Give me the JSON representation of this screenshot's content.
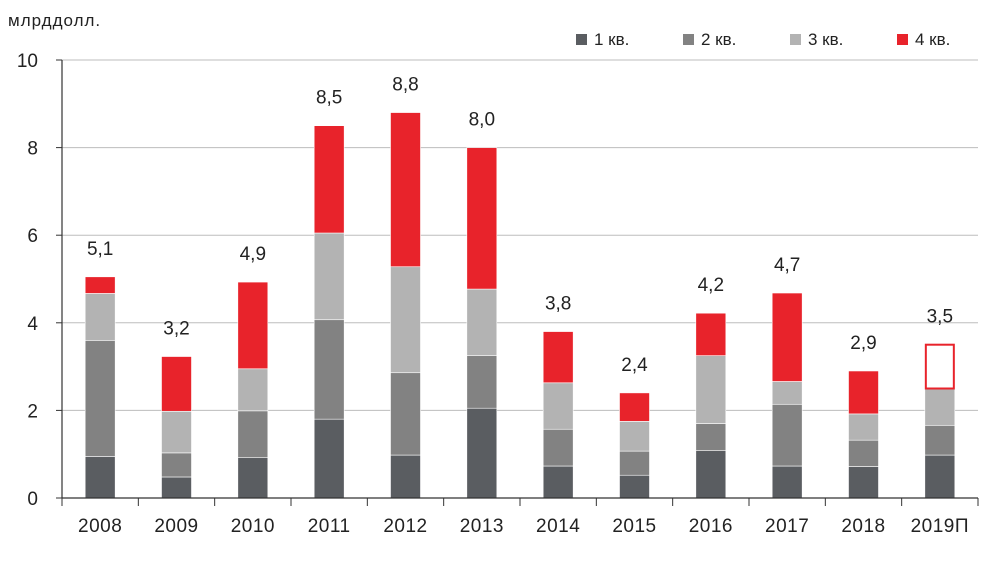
{
  "chart_data": {
    "type": "bar",
    "stacked": true,
    "y_unit_label": "млрддолл.",
    "ylim": [
      0,
      10
    ],
    "yticks": [
      "0",
      "2",
      "4",
      "6",
      "8",
      "10"
    ],
    "grid": true,
    "legend_placement": "top-right",
    "categories": [
      "2008",
      "2009",
      "2010",
      "2011",
      "2012",
      "2013",
      "2014",
      "2015",
      "2016",
      "2017",
      "2018",
      "2019П"
    ],
    "totals": [
      "5,1",
      "3,2",
      "4,9",
      "8,5",
      "8,8",
      "8,0",
      "3,8",
      "2,4",
      "4,2",
      "4,7",
      "2,9",
      "3,5"
    ],
    "series": [
      {
        "name": "1 кв.",
        "color": "#5a5d61",
        "values": [
          0.95,
          0.48,
          0.92,
          1.8,
          0.98,
          2.05,
          0.73,
          0.52,
          1.08,
          0.73,
          0.72,
          0.98
        ]
      },
      {
        "name": "2 кв.",
        "color": "#828282",
        "values": [
          2.65,
          0.55,
          1.07,
          2.27,
          1.88,
          1.2,
          0.84,
          0.55,
          0.62,
          1.41,
          0.6,
          0.68
        ]
      },
      {
        "name": "3 кв.",
        "color": "#b3b3b3",
        "values": [
          1.07,
          0.95,
          0.96,
          1.98,
          2.42,
          1.52,
          1.06,
          0.68,
          1.55,
          0.52,
          0.6,
          0.84
        ]
      },
      {
        "name": "4 кв.",
        "color": "#e8232b",
        "values": [
          0.38,
          1.25,
          1.98,
          2.45,
          3.52,
          3.23,
          1.17,
          0.65,
          0.97,
          2.02,
          0.98,
          1.0
        ]
      }
    ],
    "forecast_last_q4_outline_only": true
  }
}
